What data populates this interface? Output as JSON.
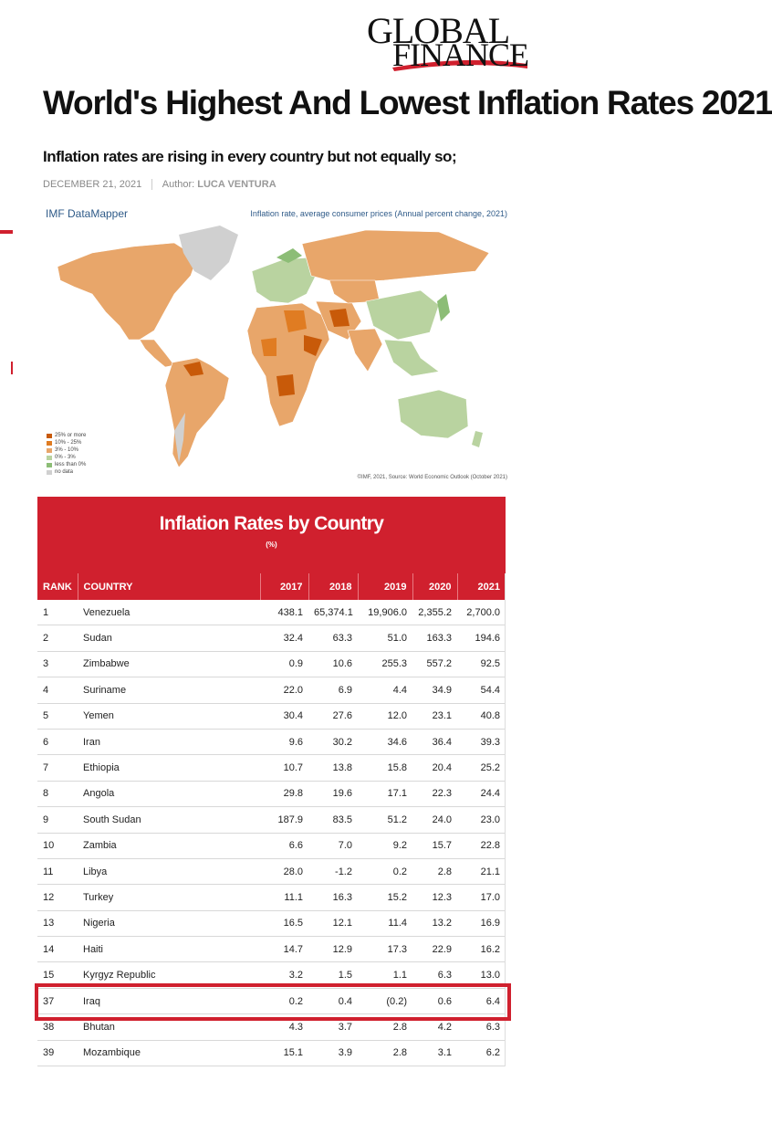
{
  "brand": {
    "line1": "GLOBAL",
    "line2": "FINANCE",
    "accent_color": "#d0202e"
  },
  "article": {
    "title": "World's Highest And Lowest Inflation Rates 2021",
    "subtitle": "Inflation rates are rising in every country but not equally so;",
    "date": "DECEMBER 21, 2021",
    "author_label": "Author:",
    "author_name": "LUCA VENTURA"
  },
  "map": {
    "source_label": "IMF DataMapper",
    "caption": "Inflation rate, average consumer prices (Annual percent change, 2021)",
    "credit": "©IMF, 2021, Source: World Economic Outlook (October 2021)",
    "legend": [
      {
        "label": "25% or more",
        "color": "#c85a09"
      },
      {
        "label": "10% - 25%",
        "color": "#e07c22"
      },
      {
        "label": "3% - 10%",
        "color": "#e8a66a"
      },
      {
        "label": "0% - 3%",
        "color": "#b9d3a0"
      },
      {
        "label": "less than 0%",
        "color": "#8cbd76"
      },
      {
        "label": "no data",
        "color": "#d0d0d0"
      }
    ]
  },
  "table": {
    "title": "Inflation Rates by Country",
    "unit": "(%)",
    "headers": [
      "RANK",
      "COUNTRY",
      "2017",
      "2018",
      "2019",
      "2020",
      "2021"
    ],
    "rows": [
      [
        "1",
        "Venezuela",
        "438.1",
        "65,374.1",
        "19,906.0",
        "2,355.2",
        "2,700.0"
      ],
      [
        "2",
        "Sudan",
        "32.4",
        "63.3",
        "51.0",
        "163.3",
        "194.6"
      ],
      [
        "3",
        "Zimbabwe",
        "0.9",
        "10.6",
        "255.3",
        "557.2",
        "92.5"
      ],
      [
        "4",
        "Suriname",
        "22.0",
        "6.9",
        "4.4",
        "34.9",
        "54.4"
      ],
      [
        "5",
        "Yemen",
        "30.4",
        "27.6",
        "12.0",
        "23.1",
        "40.8"
      ],
      [
        "6",
        "Iran",
        "9.6",
        "30.2",
        "34.6",
        "36.4",
        "39.3"
      ],
      [
        "7",
        "Ethiopia",
        "10.7",
        "13.8",
        "15.8",
        "20.4",
        "25.2"
      ],
      [
        "8",
        "Angola",
        "29.8",
        "19.6",
        "17.1",
        "22.3",
        "24.4"
      ],
      [
        "9",
        "South Sudan",
        "187.9",
        "83.5",
        "51.2",
        "24.0",
        "23.0"
      ],
      [
        "10",
        "Zambia",
        "6.6",
        "7.0",
        "9.2",
        "15.7",
        "22.8"
      ],
      [
        "11",
        "Libya",
        "28.0",
        "-1.2",
        "0.2",
        "2.8",
        "21.1"
      ],
      [
        "12",
        "Turkey",
        "11.1",
        "16.3",
        "15.2",
        "12.3",
        "17.0"
      ],
      [
        "13",
        "Nigeria",
        "16.5",
        "12.1",
        "11.4",
        "13.2",
        "16.9"
      ],
      [
        "14",
        "Haiti",
        "14.7",
        "12.9",
        "17.3",
        "22.9",
        "16.2"
      ],
      [
        "15",
        "Kyrgyz Republic",
        "3.2",
        "1.5",
        "1.1",
        "6.3",
        "13.0"
      ],
      [
        "37",
        "Iraq",
        "0.2",
        "0.4",
        "(0.2)",
        "0.6",
        "6.4"
      ],
      [
        "38",
        "Bhutan",
        "4.3",
        "3.7",
        "2.8",
        "4.2",
        "6.3"
      ],
      [
        "39",
        "Mozambique",
        "15.1",
        "3.9",
        "2.8",
        "3.1",
        "6.2"
      ]
    ],
    "highlighted_country": "Iraq"
  }
}
